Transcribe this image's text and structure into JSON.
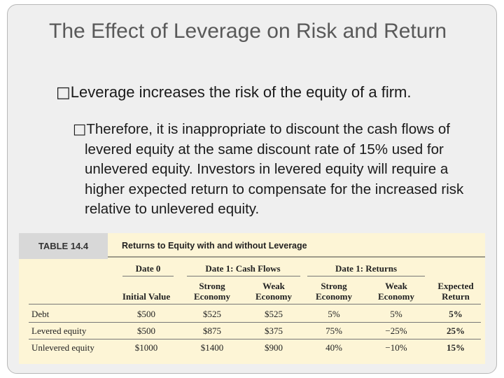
{
  "slide": {
    "title": "The Effect of Leverage on Risk and Return",
    "bullets": [
      "Leverage increases the risk of the equity of a firm.",
      "Therefore, it is inappropriate to discount the cash flows of levered equity at the same discount rate of 15% used for unlevered equity.  Investors in levered equity will require a higher expected return to compensate for the increased risk relative to unlevered equity."
    ],
    "bullet_glyph": "□"
  },
  "table": {
    "label": "TABLE 14.4",
    "title": "Returns to Equity with and without Leverage",
    "groups": [
      "Date 0",
      "Date 1: Cash Flows",
      "Date 1: Returns"
    ],
    "columns": [
      [
        "Initial Value"
      ],
      [
        "Strong",
        "Economy"
      ],
      [
        "Weak",
        "Economy"
      ],
      [
        "Strong",
        "Economy"
      ],
      [
        "Weak",
        "Economy"
      ],
      [
        "Expected",
        "Return"
      ]
    ],
    "rows": [
      {
        "label": "Debt",
        "cells": [
          "$500",
          "$525",
          "$525",
          "5%",
          "5%",
          "5%"
        ]
      },
      {
        "label": "Levered equity",
        "cells": [
          "$500",
          "$875",
          "$375",
          "75%",
          "−25%",
          "25%"
        ]
      },
      {
        "label": "Unlevered equity",
        "cells": [
          "$1000",
          "$1400",
          "$900",
          "40%",
          "−10%",
          "15%"
        ]
      }
    ]
  }
}
